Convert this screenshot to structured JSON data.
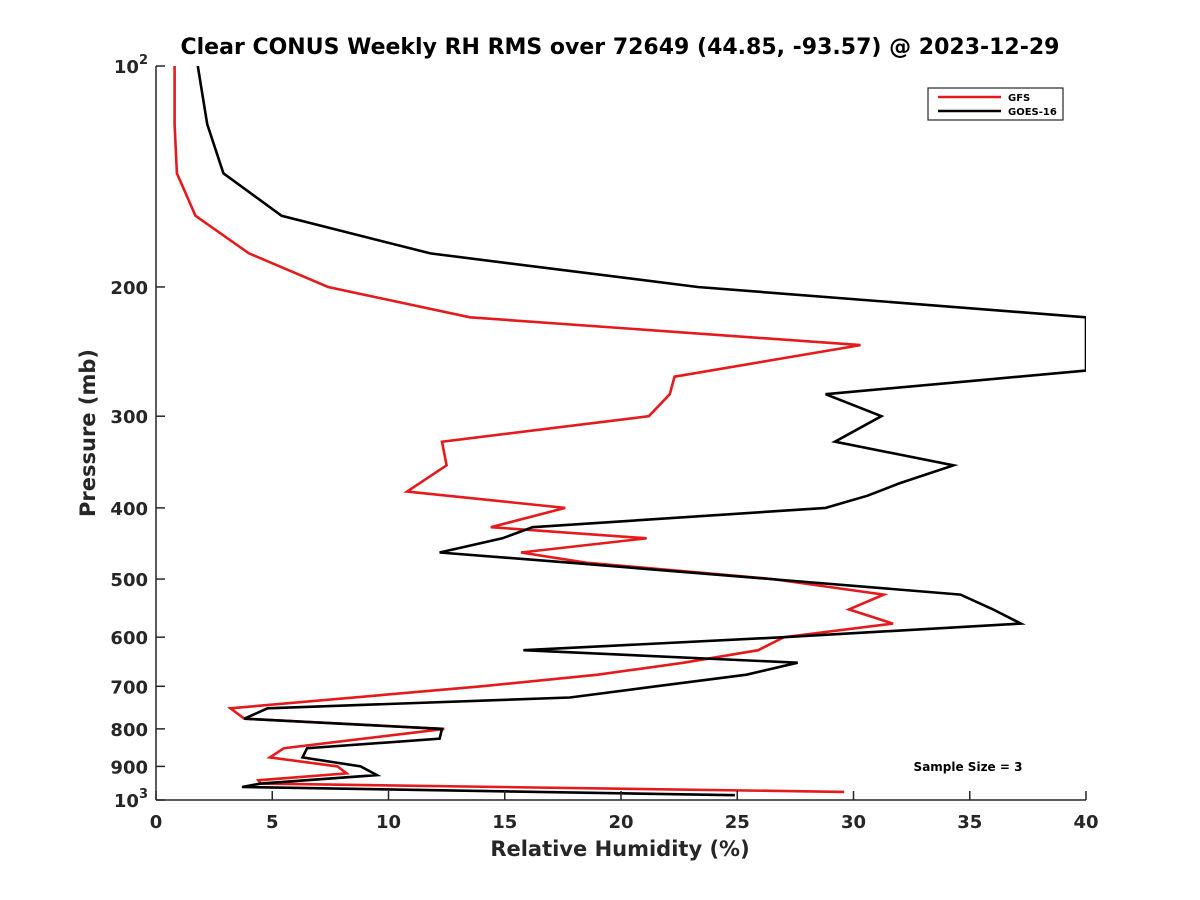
{
  "chart_data": {
    "type": "line",
    "title": "Clear CONUS Weekly RH RMS over 72649 (44.85, -93.57) @ 2023-12-29",
    "xlabel": "Relative Humidity (%)",
    "ylabel": "Pressure (mb)",
    "xlim": [
      0,
      40
    ],
    "ylim": [
      100,
      1000
    ],
    "y_scale": "log",
    "y_reversed": true,
    "grid": false,
    "legend_position": "top-right",
    "x_ticks": [
      0,
      5,
      10,
      15,
      20,
      25,
      30,
      35,
      40
    ],
    "x_tick_labels": [
      "0",
      "5",
      "10",
      "15",
      "20",
      "25",
      "30",
      "35",
      "40"
    ],
    "y_ticks": [
      100,
      200,
      300,
      400,
      500,
      600,
      700,
      800,
      900,
      1000
    ],
    "y_tick_labels": [
      "10²",
      "200",
      "300",
      "400",
      "500",
      "600",
      "700",
      "800",
      "900",
      "10³"
    ],
    "annotation": "Sample Size = 3",
    "series": [
      {
        "name": "GFS",
        "color": "#e41a1c",
        "points": [
          [
            0.8,
            100
          ],
          [
            0.8,
            120
          ],
          [
            0.9,
            140
          ],
          [
            1.7,
            160
          ],
          [
            4,
            180
          ],
          [
            7.4,
            200
          ],
          [
            13.5,
            220
          ],
          [
            30.3,
            240
          ],
          [
            22.3,
            265
          ],
          [
            22.1,
            280
          ],
          [
            21.2,
            300
          ],
          [
            12.3,
            325
          ],
          [
            12.5,
            350
          ],
          [
            10.8,
            380
          ],
          [
            17.6,
            400
          ],
          [
            14.4,
            425
          ],
          [
            21.1,
            440
          ],
          [
            15.7,
            460
          ],
          [
            18.5,
            475
          ],
          [
            26.5,
            500
          ],
          [
            31.3,
            525
          ],
          [
            29.8,
            550
          ],
          [
            31.7,
            575
          ],
          [
            27,
            600
          ],
          [
            25.9,
            625
          ],
          [
            22.7,
            650
          ],
          [
            19,
            675
          ],
          [
            14,
            700
          ],
          [
            3.2,
            750
          ],
          [
            3.8,
            775
          ],
          [
            12.4,
            800
          ],
          [
            5.5,
            850
          ],
          [
            4.9,
            875
          ],
          [
            7.8,
            900
          ],
          [
            8.2,
            920
          ],
          [
            4.4,
            940
          ],
          [
            4.5,
            950
          ],
          [
            29.6,
            975
          ]
        ]
      },
      {
        "name": "GOES-16",
        "color": "#000000",
        "points": [
          [
            1.8,
            100
          ],
          [
            2.2,
            120
          ],
          [
            2.9,
            140
          ],
          [
            5.4,
            160
          ],
          [
            11.8,
            180
          ],
          [
            23.3,
            200
          ],
          [
            40,
            220
          ],
          [
            40,
            260
          ],
          [
            28.8,
            280
          ],
          [
            31.2,
            300
          ],
          [
            29.2,
            325
          ],
          [
            34.3,
            350
          ],
          [
            32,
            370
          ],
          [
            30.6,
            385
          ],
          [
            28.8,
            400
          ],
          [
            16.2,
            425
          ],
          [
            14.9,
            440
          ],
          [
            12.2,
            460
          ],
          [
            17.8,
            475
          ],
          [
            26.4,
            500
          ],
          [
            34.6,
            525
          ],
          [
            36,
            550
          ],
          [
            37.2,
            575
          ],
          [
            27,
            600
          ],
          [
            15.8,
            625
          ],
          [
            27.6,
            650
          ],
          [
            25.4,
            675
          ],
          [
            21.5,
            700
          ],
          [
            17.8,
            725
          ],
          [
            4.8,
            750
          ],
          [
            3.8,
            775
          ],
          [
            12.3,
            800
          ],
          [
            12.2,
            825
          ],
          [
            6.5,
            850
          ],
          [
            6.3,
            875
          ],
          [
            8.8,
            900
          ],
          [
            9.5,
            925
          ],
          [
            4.5,
            950
          ],
          [
            3.7,
            960
          ],
          [
            24.9,
            985
          ]
        ]
      }
    ]
  }
}
